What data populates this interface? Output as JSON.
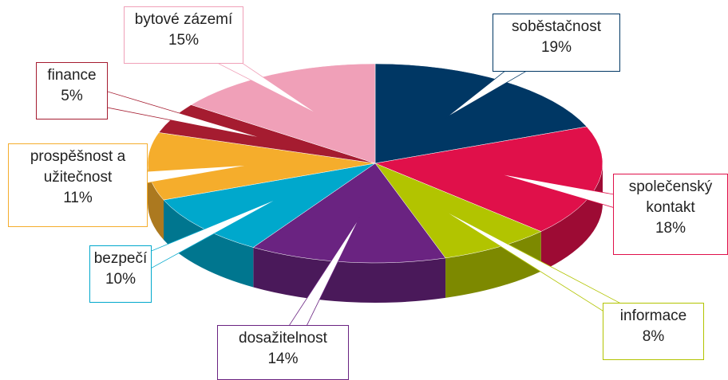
{
  "chart_data": {
    "type": "pie",
    "categories": [
      "soběstačnost",
      "společenský kontakt",
      "informace",
      "dosažitelnost",
      "bezpečí",
      "prospěšnost a užitečnost",
      "finance",
      "bytové zázemí"
    ],
    "values": [
      19,
      18,
      8,
      14,
      10,
      11,
      5,
      15
    ],
    "value_labels": [
      "19%",
      "18%",
      "8%",
      "14%",
      "10%",
      "11%",
      "5%",
      "15%"
    ],
    "colors": [
      "#003764",
      "#e0104a",
      "#b2c400",
      "#6a2381",
      "#00a8cc",
      "#f5ad2c",
      "#a51c30",
      "#f0a0b8"
    ]
  }
}
